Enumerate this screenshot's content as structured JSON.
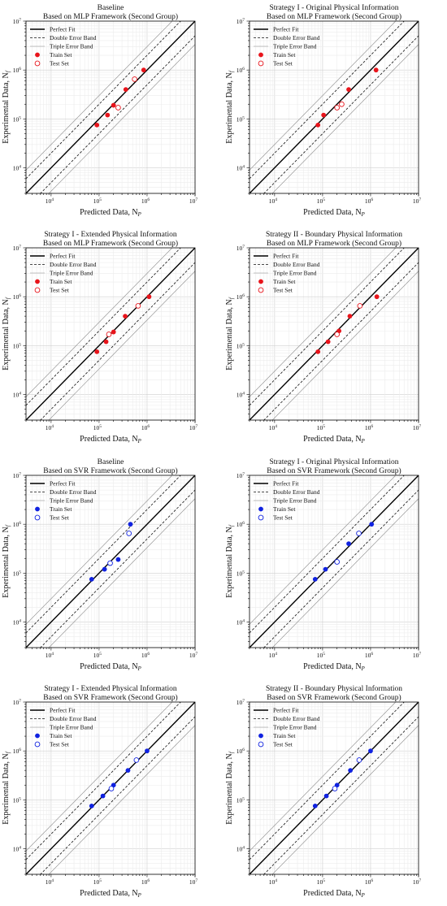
{
  "figure": {
    "panels": [
      {
        "title1": "Baseline",
        "title2": "Based on MLP Framework (Second Group)",
        "color": "#e8141b",
        "train": [
          [
            90000,
            75000
          ],
          [
            150000,
            120000
          ],
          [
            200000,
            190000
          ],
          [
            360000,
            400000
          ],
          [
            850000,
            1000000
          ]
        ],
        "test": [
          [
            250000,
            170000
          ],
          [
            550000,
            650000
          ]
        ]
      },
      {
        "title1": "Strategy I - Original Physical Information",
        "title2": "Based on MLP Framework (Second Group)",
        "color": "#e8141b",
        "train": [
          [
            80000,
            75000
          ],
          [
            105000,
            120000
          ],
          [
            350000,
            400000
          ],
          [
            1300000,
            1000000
          ]
        ],
        "test": [
          [
            200000,
            170000
          ],
          [
            250000,
            200000
          ]
        ]
      },
      {
        "title1": "Strategy I - Extended Physical Information",
        "title2": "Based on MLP Framework (Second Group)",
        "color": "#e8141b",
        "train": [
          [
            90000,
            75000
          ],
          [
            140000,
            120000
          ],
          [
            200000,
            190000
          ],
          [
            350000,
            400000
          ],
          [
            1100000,
            1000000
          ]
        ],
        "test": [
          [
            160000,
            170000
          ],
          [
            650000,
            650000
          ]
        ]
      },
      {
        "title1": "Strategy II - Boundary Physical Information",
        "title2": "Based on MLP Framework (Second Group)",
        "color": "#e8141b",
        "train": [
          [
            80000,
            75000
          ],
          [
            130000,
            120000
          ],
          [
            220000,
            200000
          ],
          [
            370000,
            400000
          ],
          [
            1350000,
            1000000
          ]
        ],
        "test": [
          [
            200000,
            170000
          ],
          [
            600000,
            650000
          ]
        ]
      },
      {
        "title1": "Baseline",
        "title2": "Based on SVR Framework (Second Group)",
        "color": "#1022e0",
        "train": [
          [
            70000,
            75000
          ],
          [
            130000,
            120000
          ],
          [
            250000,
            190000
          ],
          [
            450000,
            1000000
          ]
        ],
        "test": [
          [
            170000,
            160000
          ],
          [
            420000,
            650000
          ]
        ]
      },
      {
        "title1": "Strategy I - Original Physical Information",
        "title2": "Based on SVR Framework (Second Group)",
        "color": "#1022e0",
        "train": [
          [
            70000,
            75000
          ],
          [
            115000,
            120000
          ],
          [
            350000,
            400000
          ],
          [
            1050000,
            1000000
          ]
        ],
        "test": [
          [
            200000,
            170000
          ],
          [
            570000,
            650000
          ]
        ]
      },
      {
        "title1": "Strategy I - Extended Physical Information",
        "title2": "Based on SVR Framework (Second Group)",
        "color": "#1022e0",
        "train": [
          [
            70000,
            75000
          ],
          [
            120000,
            120000
          ],
          [
            200000,
            200000
          ],
          [
            400000,
            400000
          ],
          [
            1000000,
            1000000
          ]
        ],
        "test": [
          [
            180000,
            170000
          ],
          [
            600000,
            650000
          ]
        ]
      },
      {
        "title1": "Strategy II - Boundary Physical Information",
        "title2": "Based on SVR Framework (Second Group)",
        "color": "#1022e0",
        "train": [
          [
            70000,
            75000
          ],
          [
            120000,
            120000
          ],
          [
            200000,
            200000
          ],
          [
            380000,
            400000
          ],
          [
            1000000,
            1000000
          ]
        ],
        "test": [
          [
            180000,
            170000
          ],
          [
            580000,
            650000
          ]
        ]
      }
    ],
    "xlabel": "Predicted Data, N",
    "xlabel_sub": "P",
    "ylabel": "Experimental Data, N",
    "ylabel_sub": "f",
    "legend": [
      "Perfect Fit",
      "Double Error Band",
      "Triple Error Band",
      "Train Set",
      "Test Set"
    ]
  },
  "chart_data": {
    "type": "scatter",
    "scale": "log-log",
    "xlim": [
      3000,
      10000000
    ],
    "ylim": [
      3000,
      10000000
    ],
    "tick_labels": [
      "10",
      "10",
      "10",
      "10"
    ],
    "tick_exponents": [
      "4",
      "5",
      "6",
      "7"
    ],
    "grid": true,
    "legend_position": "top-left",
    "reference_lines": [
      "y = x",
      "y = 2x, y = x/2",
      "y = 3x, y = x/3"
    ]
  }
}
